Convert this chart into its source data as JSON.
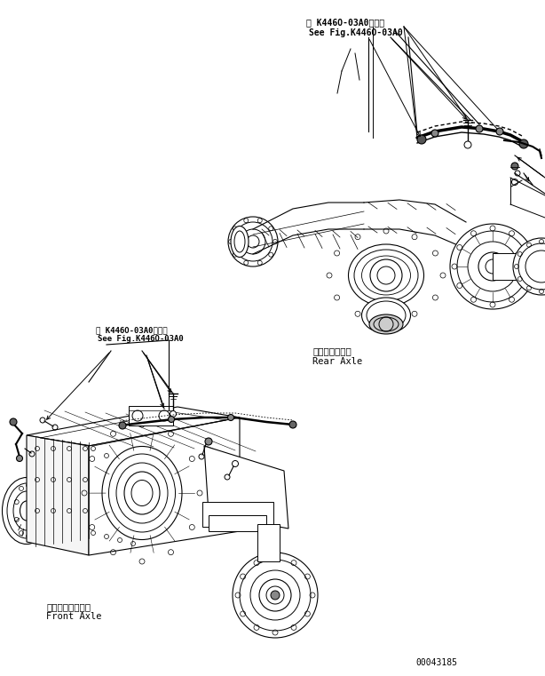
{
  "background_color": "#ffffff",
  "line_color": "#000000",
  "text_color": "#000000",
  "figsize": [
    6.14,
    7.61
  ],
  "dpi": 100,
  "part_number": "00043185",
  "labels": {
    "rear_axle_jp": "リヤーアクスル",
    "rear_axle_en": "Rear Axle",
    "front_axle_jp": "フロントアクスル",
    "front_axle_en": "Front Axle",
    "ref1_jp": "第 K446O-03A0図参照",
    "ref1_en": "See Fig.K446O-03A0",
    "ref2_jp": "第 K446O-03A0図参照",
    "ref2_en": "See Fig.K446O-03A0"
  }
}
